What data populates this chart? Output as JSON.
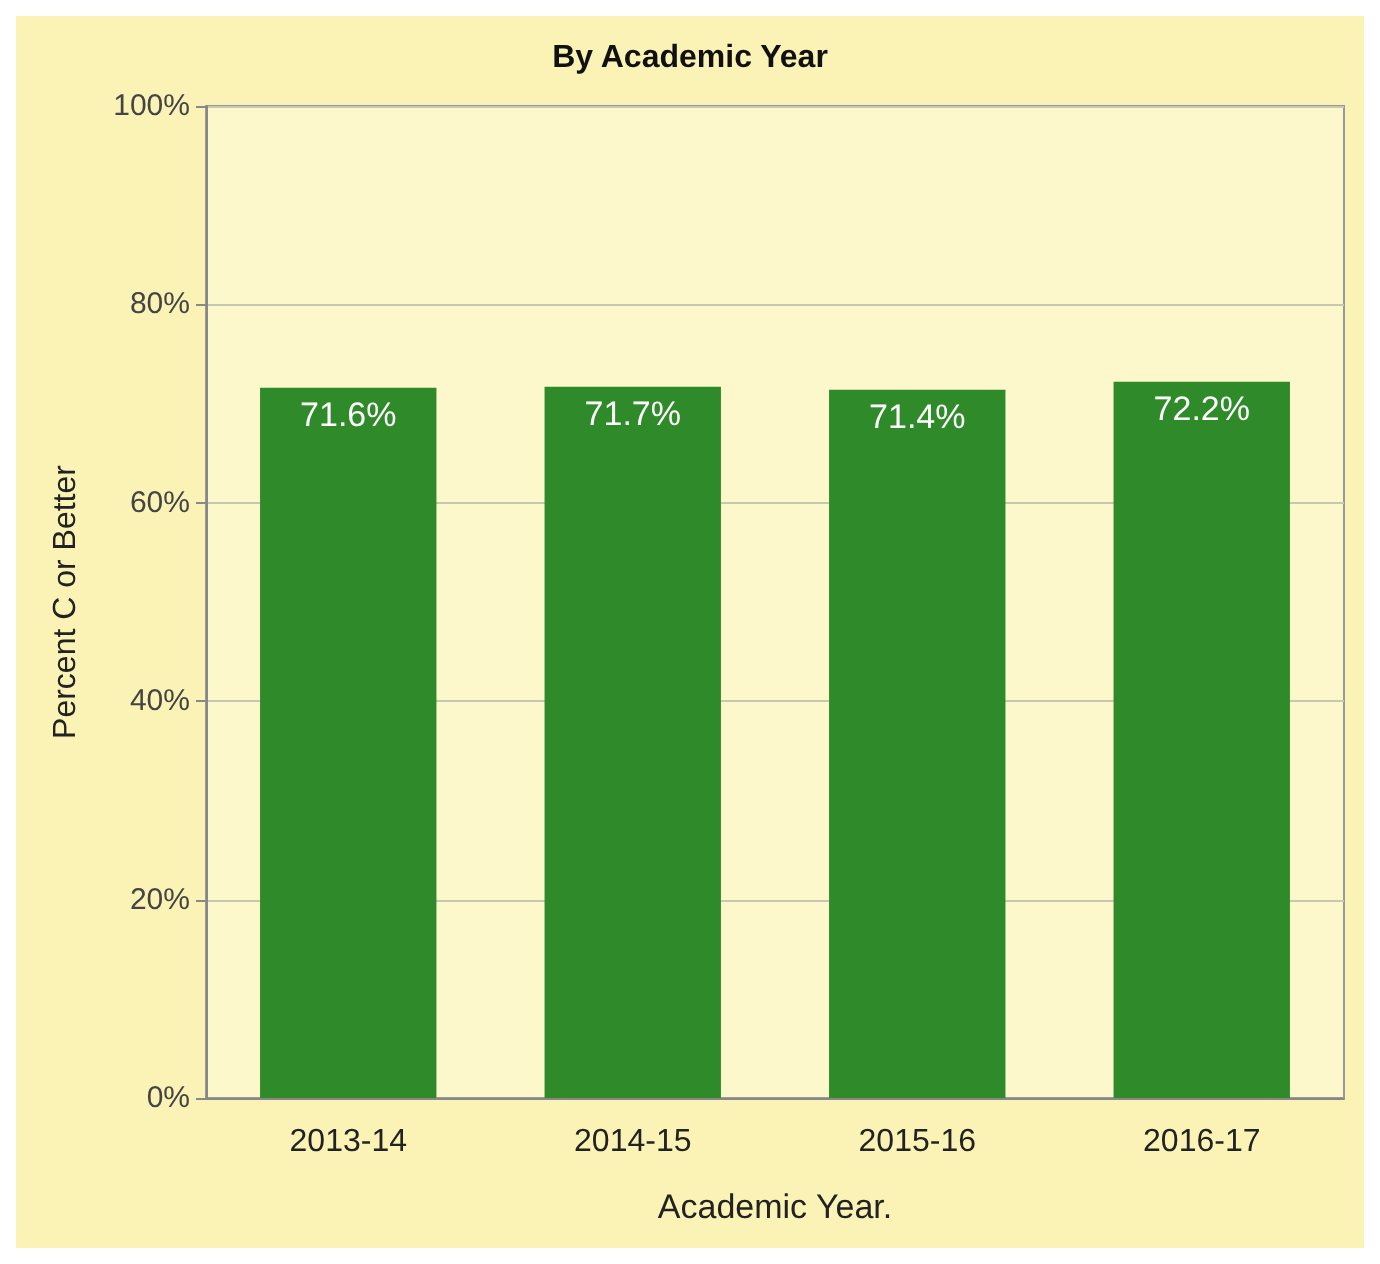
{
  "chart_data": {
    "type": "bar",
    "title": "By Academic Year",
    "xlabel": "Academic Year.",
    "ylabel": "Percent C or Better",
    "categories": [
      "2013-14",
      "2014-15",
      "2015-16",
      "2016-17"
    ],
    "values": [
      71.6,
      71.7,
      71.4,
      72.2
    ],
    "color": "#2f8a2a",
    "value_labels": [
      "71.6%",
      "71.7%",
      "71.4%",
      "72.2%"
    ],
    "ylim": [
      0,
      100
    ],
    "yticks": [
      {
        "value": 0,
        "label": "0%"
      },
      {
        "value": 20,
        "label": "20%"
      },
      {
        "value": 40,
        "label": "40%"
      },
      {
        "value": 60,
        "label": "60%"
      },
      {
        "value": 80,
        "label": "80%"
      },
      {
        "value": 100,
        "label": "100%"
      }
    ],
    "grid": "y"
  }
}
